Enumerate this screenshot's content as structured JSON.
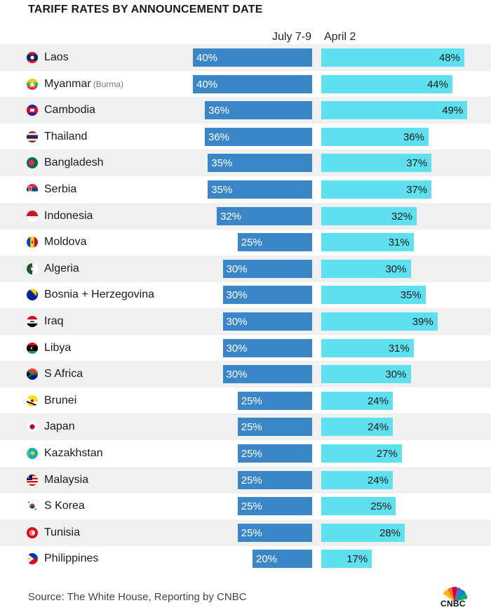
{
  "title": "TARIFF RATES BY ANNOUNCEMENT DATE",
  "source": "Source: The White House, Reporting by CNBC",
  "brand": "CNBC",
  "colors": {
    "july_bar": "#3b86c6",
    "april_bar": "#5fe0ee",
    "row_shade": "#f0f0f0"
  },
  "chart_data": {
    "type": "bar",
    "orientation": "horizontal",
    "title": "TARIFF RATES BY ANNOUNCEMENT DATE",
    "series": [
      {
        "name": "July 7-9",
        "values": [
          40,
          40,
          36,
          36,
          35,
          35,
          32,
          25,
          30,
          30,
          30,
          30,
          30,
          25,
          25,
          25,
          25,
          25,
          25,
          20
        ]
      },
      {
        "name": "April 2",
        "values": [
          48,
          44,
          49,
          36,
          37,
          37,
          32,
          31,
          30,
          35,
          39,
          31,
          30,
          24,
          24,
          27,
          24,
          25,
          28,
          17
        ]
      }
    ],
    "categories": [
      "Laos",
      "Myanmar",
      "Cambodia",
      "Thailand",
      "Bangladesh",
      "Serbia",
      "Indonesia",
      "Moldova",
      "Algeria",
      "Bosnia + Herzegovina",
      "Iraq",
      "Libya",
      "S Africa",
      "Brunei",
      "Japan",
      "Kazakhstan",
      "Malaysia",
      "S Korea",
      "Tunisia",
      "Philippines"
    ],
    "category_notes": {
      "Myanmar": "(Burma)"
    },
    "unit": "%"
  }
}
